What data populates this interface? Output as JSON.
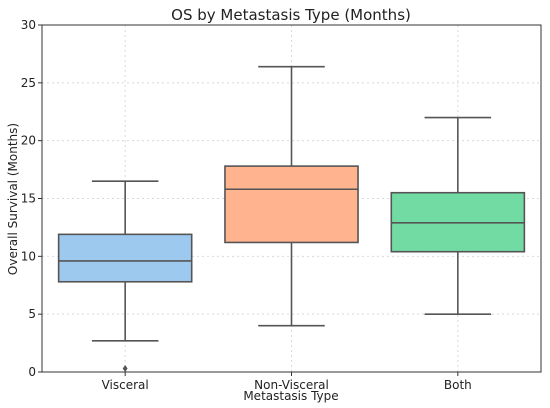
{
  "chart_data": {
    "type": "box",
    "title": "OS by Metastasis Type (Months)",
    "xlabel": "Metastasis Type",
    "ylabel": "Overall Survival (Months)",
    "ylim": [
      0,
      30
    ],
    "yticks": [
      0,
      5,
      10,
      15,
      20,
      25,
      30
    ],
    "grid": true,
    "categories": [
      "Visceral",
      "Non-Visceral",
      "Both"
    ],
    "boxes": [
      {
        "category": "Visceral",
        "whisker_low": 2.7,
        "q1": 7.8,
        "median": 9.6,
        "q3": 11.9,
        "whisker_high": 16.5,
        "outliers": [
          0.3
        ],
        "color": "#9ec9ee"
      },
      {
        "category": "Non-Visceral",
        "whisker_low": 4.0,
        "q1": 11.2,
        "median": 15.8,
        "q3": 17.8,
        "whisker_high": 26.4,
        "outliers": [],
        "color": "#ffb38f"
      },
      {
        "category": "Both",
        "whisker_low": 5.0,
        "q1": 10.4,
        "median": 12.9,
        "q3": 15.5,
        "whisker_high": 22.0,
        "outliers": [],
        "color": "#72dba3"
      }
    ]
  }
}
